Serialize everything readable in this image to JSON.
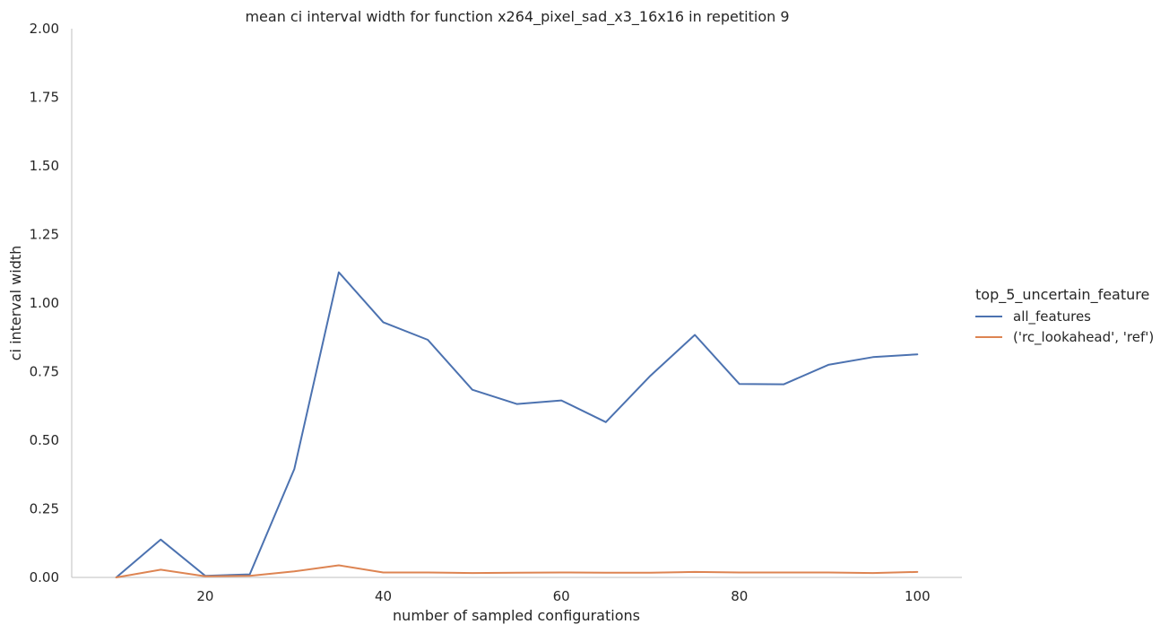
{
  "chart_data": {
    "type": "line",
    "title": "mean ci interval width for function x264_pixel_sad_x3_16x16 in repetition 9",
    "xlabel": "number of sampled configurations",
    "ylabel": "ci interval width",
    "xlim": [
      5,
      105
    ],
    "ylim": [
      0,
      2.0
    ],
    "xticks": [
      20,
      40,
      60,
      80,
      100
    ],
    "yticks": [
      0.0,
      0.25,
      0.5,
      0.75,
      1.0,
      1.25,
      1.5,
      1.75,
      2.0
    ],
    "xtick_labels": [
      "20",
      "40",
      "60",
      "80",
      "100"
    ],
    "ytick_labels": [
      "0.00",
      "0.25",
      "0.50",
      "0.75",
      "1.00",
      "1.25",
      "1.50",
      "1.75",
      "2.00"
    ],
    "grid": false,
    "legend": {
      "title": "top_5_uncertain_feature",
      "placement": "right"
    },
    "x": [
      10,
      15,
      20,
      25,
      30,
      35,
      40,
      45,
      50,
      55,
      60,
      65,
      70,
      75,
      80,
      85,
      90,
      95,
      100
    ],
    "series": [
      {
        "name": "all_features",
        "color": "#4c72b0",
        "values": [
          0.0,
          0.138,
          0.006,
          0.011,
          0.395,
          1.112,
          0.93,
          0.866,
          0.684,
          0.632,
          0.645,
          0.566,
          0.735,
          0.884,
          0.705,
          0.704,
          0.775,
          0.803,
          0.813
        ]
      },
      {
        "name": "('rc_lookahead', 'ref')",
        "color": "#dd8452",
        "values": [
          0.0,
          0.028,
          0.004,
          0.006,
          0.022,
          0.044,
          0.018,
          0.018,
          0.016,
          0.017,
          0.018,
          0.017,
          0.017,
          0.02,
          0.018,
          0.018,
          0.018,
          0.016,
          0.02
        ]
      }
    ]
  }
}
